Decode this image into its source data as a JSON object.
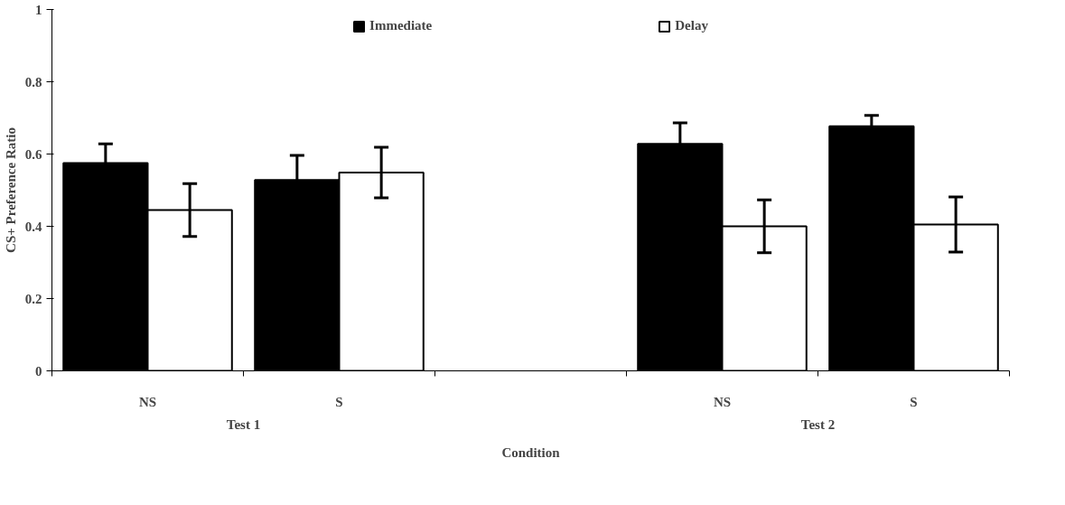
{
  "chart_data": {
    "type": "bar",
    "xlabel": "Condition",
    "ylabel": "CS+ Preference Ratio",
    "categories": [
      "NS",
      "S",
      null,
      "NS",
      "S"
    ],
    "series": [
      {
        "name": "Immediate",
        "color": "#000000",
        "values": [
          0.575,
          0.528,
          null,
          0.628,
          0.677
        ],
        "errors": [
          0.053,
          0.068,
          null,
          0.058,
          0.03
        ]
      },
      {
        "name": "Delay",
        "color": "#ffffff",
        "values": [
          0.445,
          0.549,
          null,
          0.4,
          0.405
        ],
        "errors": [
          0.073,
          0.07,
          null,
          0.073,
          0.076
        ]
      }
    ],
    "ylim": [
      0,
      1
    ],
    "yticks": [
      0,
      0.2,
      0.4,
      0.6,
      0.8,
      1
    ],
    "annotations": [
      "Test 1",
      "Test 2"
    ],
    "legend": "top",
    "grid": false
  }
}
